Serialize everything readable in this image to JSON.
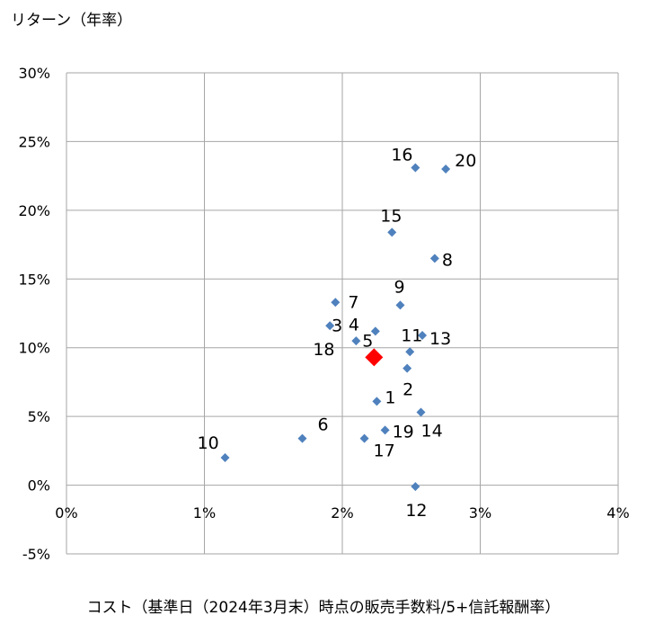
{
  "chart_data": {
    "type": "scatter",
    "title": "",
    "ylabel": "リターン（年率）",
    "xlabel": "コスト（基準日（2024年3月末）時点の販売手数料/5+信託報酬率）",
    "xlim": [
      0,
      4
    ],
    "ylim": [
      -5,
      30
    ],
    "xticks": [
      "0%",
      "1%",
      "2%",
      "3%",
      "4%"
    ],
    "yticks": [
      "-5%",
      "0%",
      "5%",
      "10%",
      "15%",
      "20%",
      "25%",
      "30%"
    ],
    "grid": true,
    "colors": {
      "point": "#4F81BD",
      "highlight": "#FF0000"
    },
    "points": [
      {
        "label": "1",
        "x": 2.25,
        "y": 6.1
      },
      {
        "label": "2",
        "x": 2.47,
        "y": 8.5
      },
      {
        "label": "3",
        "x": 1.91,
        "y": 11.6
      },
      {
        "label": "4",
        "x": 2.24,
        "y": 11.2
      },
      {
        "label": "5",
        "x": 2.23,
        "y": 9.3,
        "highlight": true
      },
      {
        "label": "6",
        "x": 1.71,
        "y": 3.4
      },
      {
        "label": "7",
        "x": 1.95,
        "y": 13.3
      },
      {
        "label": "8",
        "x": 2.67,
        "y": 16.5
      },
      {
        "label": "9",
        "x": 2.42,
        "y": 13.1
      },
      {
        "label": "10",
        "x": 1.15,
        "y": 2.0
      },
      {
        "label": "11",
        "x": 2.49,
        "y": 9.7
      },
      {
        "label": "12",
        "x": 2.53,
        "y": -0.1
      },
      {
        "label": "13",
        "x": 2.58,
        "y": 10.9
      },
      {
        "label": "14",
        "x": 2.57,
        "y": 5.3
      },
      {
        "label": "15",
        "x": 2.36,
        "y": 18.4
      },
      {
        "label": "16",
        "x": 2.53,
        "y": 23.1
      },
      {
        "label": "17",
        "x": 2.16,
        "y": 3.4
      },
      {
        "label": "18",
        "x": 2.1,
        "y": 10.5
      },
      {
        "label": "19",
        "x": 2.31,
        "y": 4.0
      },
      {
        "label": "20",
        "x": 2.75,
        "y": 23.0
      }
    ]
  }
}
